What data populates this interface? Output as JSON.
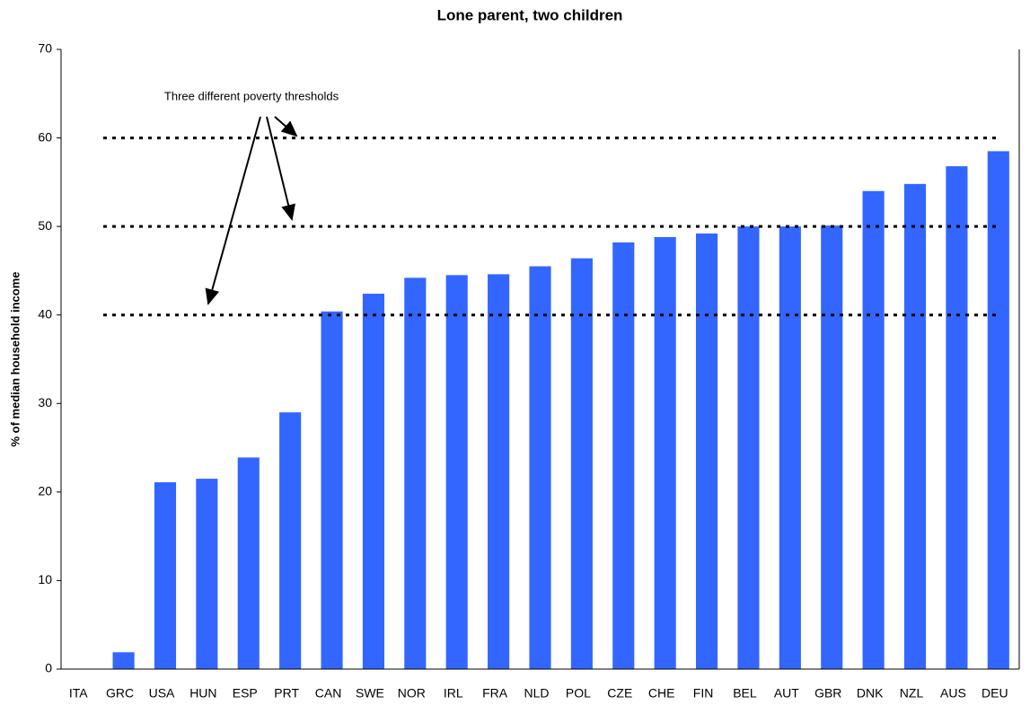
{
  "chart_data": {
    "type": "bar",
    "title": "Lone parent, two children",
    "y_label": "% of median household income",
    "annotation": "Three different poverty thresholds",
    "categories": [
      "ITA",
      "GRC",
      "USA",
      "HUN",
      "ESP",
      "PRT",
      "CAN",
      "SWE",
      "NOR",
      "IRL",
      "FRA",
      "NLD",
      "POL",
      "CZE",
      "CHE",
      "FIN",
      "BEL",
      "AUT",
      "GBR",
      "DNK",
      "NZL",
      "AUS",
      "DEU"
    ],
    "values": [
      0,
      1.9,
      21.1,
      21.5,
      23.9,
      29,
      40.4,
      42.4,
      44.2,
      44.5,
      44.6,
      45.5,
      46.4,
      48.2,
      48.8,
      49.2,
      50,
      50,
      50.1,
      54,
      54.8,
      56.8,
      58.5
    ],
    "color": "#3366ff",
    "thresholds": [
      40,
      50,
      60
    ],
    "ylim": [
      0,
      70
    ],
    "yticks": [
      0,
      10,
      20,
      30,
      40,
      50,
      60,
      70
    ],
    "grid": false
  }
}
